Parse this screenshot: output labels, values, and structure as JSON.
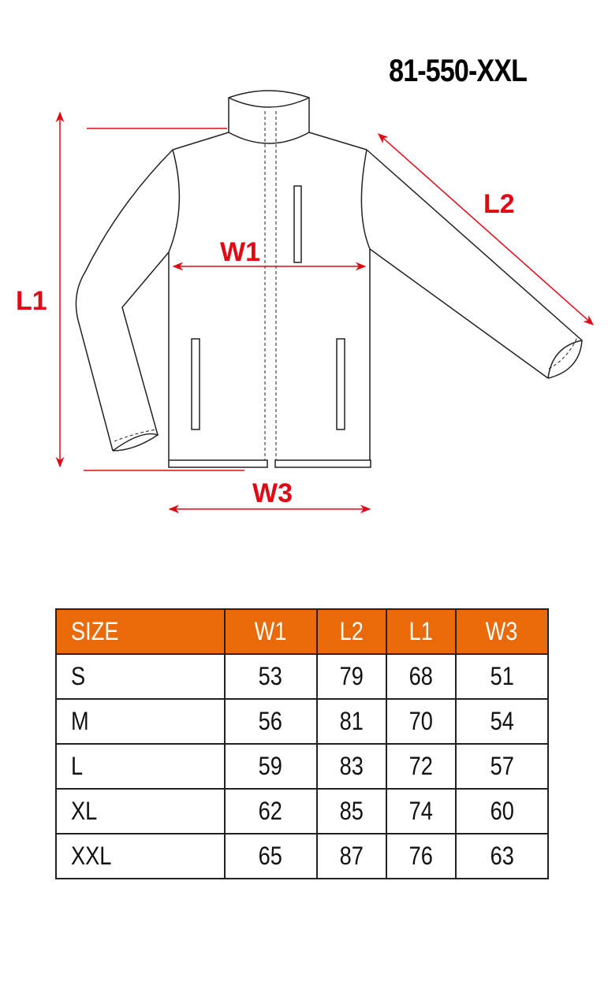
{
  "title": "81-550-XXL",
  "diagram": {
    "labels": {
      "L1": "L1",
      "L2": "L2",
      "W1": "W1",
      "W3": "W3"
    },
    "colors": {
      "measure": "#e30613",
      "outline": "#222222"
    }
  },
  "table": {
    "header_color": "#ea6a0a",
    "headers": [
      "SIZE",
      "W1",
      "L2",
      "L1",
      "W3"
    ],
    "rows": [
      [
        "S",
        "53",
        "79",
        "68",
        "51"
      ],
      [
        "M",
        "56",
        "81",
        "70",
        "54"
      ],
      [
        "L",
        "59",
        "83",
        "72",
        "57"
      ],
      [
        "XL",
        "62",
        "85",
        "74",
        "60"
      ],
      [
        "XXL",
        "65",
        "87",
        "76",
        "63"
      ]
    ]
  }
}
